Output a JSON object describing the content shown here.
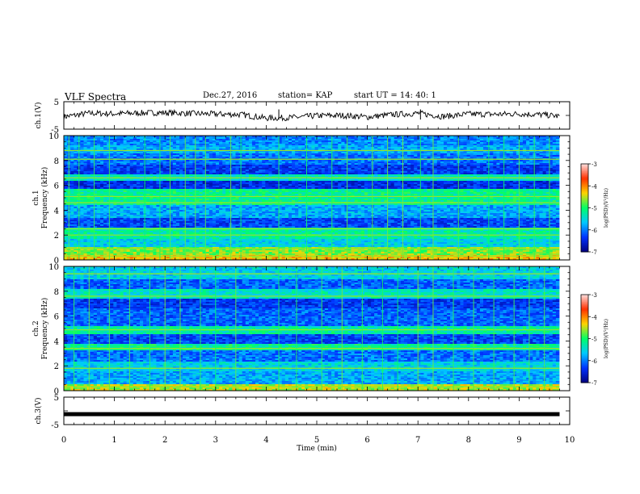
{
  "header": {
    "title": "VLF Spectra",
    "date": "Dec.27, 2016",
    "station": "station= KAP",
    "start": "start  UT  =   14: 40: 1"
  },
  "colors": {
    "trace": "#000000",
    "colormap": [
      "#00007f",
      "#0033ff",
      "#00c8ff",
      "#00ff66",
      "#ffd400",
      "#ff3000",
      "#ffe0e0"
    ]
  },
  "chart_data": [
    {
      "type": "line",
      "panel": "ch1-waveform",
      "ylabel": "ch.1(V)",
      "ylim": [
        -5,
        5
      ],
      "yticks": [
        "5",
        "-5"
      ],
      "x": [
        0,
        0.5,
        1,
        1.5,
        2,
        2.5,
        3,
        3.5,
        4,
        4.5,
        5,
        5.5,
        6,
        6.5,
        7,
        7.5,
        8,
        8.5,
        9,
        9.5,
        9.8
      ],
      "values": [
        -0.5,
        0.8,
        0.6,
        0.9,
        1.0,
        0.7,
        0.5,
        0.3,
        -1.0,
        -0.8,
        -0.1,
        0.0,
        -0.6,
        0.3,
        0.8,
        -0.4,
        0.5,
        0.4,
        0.6,
        0.2,
        -0.3
      ]
    },
    {
      "type": "heatmap",
      "panel": "ch1-spectrogram",
      "ylabel": "ch.1",
      "ylabel2": "Frequency (kHz)",
      "ylim": [
        0,
        10
      ],
      "yticks": [
        "0",
        "2",
        "4",
        "6",
        "8",
        "10"
      ],
      "xlim": [
        0,
        10
      ],
      "colorbar": {
        "label": "log(PSD)(V²/Hz)",
        "range": [
          -7,
          -3
        ],
        "ticks": [
          "-3",
          "-4",
          "-5",
          "-6",
          "-7"
        ]
      },
      "bands_khz": [
        {
          "lo": 0.0,
          "hi": 0.4,
          "level": 0.68
        },
        {
          "lo": 0.4,
          "hi": 1.0,
          "level": 0.58
        },
        {
          "lo": 1.0,
          "hi": 1.7,
          "level": 0.36
        },
        {
          "lo": 1.7,
          "hi": 2.6,
          "level": 0.44
        },
        {
          "lo": 2.6,
          "hi": 3.4,
          "level": 0.18
        },
        {
          "lo": 3.4,
          "hi": 4.4,
          "level": 0.3
        },
        {
          "lo": 4.4,
          "hi": 5.7,
          "level": 0.46
        },
        {
          "lo": 5.7,
          "hi": 6.4,
          "level": 0.14
        },
        {
          "lo": 6.4,
          "hi": 6.9,
          "level": 0.4
        },
        {
          "lo": 6.9,
          "hi": 7.6,
          "level": 0.16
        },
        {
          "lo": 7.6,
          "hi": 8.6,
          "level": 0.24
        },
        {
          "lo": 8.6,
          "hi": 9.2,
          "level": 0.3
        },
        {
          "lo": 9.2,
          "hi": 10.0,
          "level": 0.26
        }
      ],
      "lines_khz": [
        0.3,
        0.9,
        2.0,
        2.5,
        4.6,
        5.1,
        6.6,
        8.1,
        8.8
      ],
      "spikes_min": [
        0.1,
        0.3,
        0.6,
        0.9,
        1.6,
        1.9,
        2.1,
        2.4,
        2.6,
        2.8,
        3.3,
        3.5,
        4.25,
        4.8,
        5.3,
        5.6,
        6.1,
        6.4,
        6.7,
        7.05,
        7.3,
        7.8,
        8.4,
        8.7,
        9.0,
        9.3,
        9.6
      ]
    },
    {
      "type": "heatmap",
      "panel": "ch2-spectrogram",
      "ylabel": "ch.2",
      "ylabel2": "Frequency (kHz)",
      "ylim": [
        0,
        10
      ],
      "yticks": [
        "0",
        "2",
        "4",
        "6",
        "8",
        "10"
      ],
      "xlim": [
        0,
        10
      ],
      "colorbar": {
        "label": "log(PSD)(V²/Hz)",
        "range": [
          -7,
          -3
        ],
        "ticks": [
          "-3",
          "-4",
          "-5",
          "-6",
          "-7"
        ]
      },
      "bands_khz": [
        {
          "lo": 0.0,
          "hi": 0.5,
          "level": 0.62
        },
        {
          "lo": 0.5,
          "hi": 1.6,
          "level": 0.3
        },
        {
          "lo": 1.6,
          "hi": 2.4,
          "level": 0.36
        },
        {
          "lo": 2.4,
          "hi": 3.2,
          "level": 0.24
        },
        {
          "lo": 3.2,
          "hi": 3.8,
          "level": 0.46
        },
        {
          "lo": 3.8,
          "hi": 4.6,
          "level": 0.18
        },
        {
          "lo": 4.6,
          "hi": 5.2,
          "level": 0.44
        },
        {
          "lo": 5.2,
          "hi": 6.6,
          "level": 0.22
        },
        {
          "lo": 6.6,
          "hi": 7.4,
          "level": 0.16
        },
        {
          "lo": 7.4,
          "hi": 8.2,
          "level": 0.4
        },
        {
          "lo": 8.2,
          "hi": 9.0,
          "level": 0.22
        },
        {
          "lo": 9.0,
          "hi": 10.0,
          "level": 0.36
        }
      ],
      "lines_khz": [
        0.35,
        1.8,
        3.4,
        4.9,
        7.6,
        9.4
      ],
      "spikes_min": [
        0.2,
        0.5,
        0.9,
        1.3,
        1.7,
        2.0,
        2.3,
        2.7,
        3.0,
        3.4,
        4.25,
        4.6,
        5.1,
        5.5,
        5.9,
        6.3,
        6.6,
        7.0,
        7.3,
        7.7,
        8.1,
        8.5,
        8.9,
        9.2,
        9.5
      ]
    },
    {
      "type": "line",
      "panel": "ch3-waveform",
      "ylabel": "ch.3(V)",
      "ylim": [
        -5,
        5
      ],
      "yticks": [
        "5",
        "-5"
      ],
      "x": [
        0,
        9.8
      ],
      "values": [
        -1.2,
        -1.2
      ]
    },
    {
      "type": "axis",
      "panel": "time-axis",
      "xlabel": "Time (min)",
      "xlim": [
        0,
        10
      ],
      "xticks": [
        "0",
        "1",
        "2",
        "3",
        "4",
        "5",
        "6",
        "7",
        "8",
        "9",
        "10"
      ]
    }
  ]
}
